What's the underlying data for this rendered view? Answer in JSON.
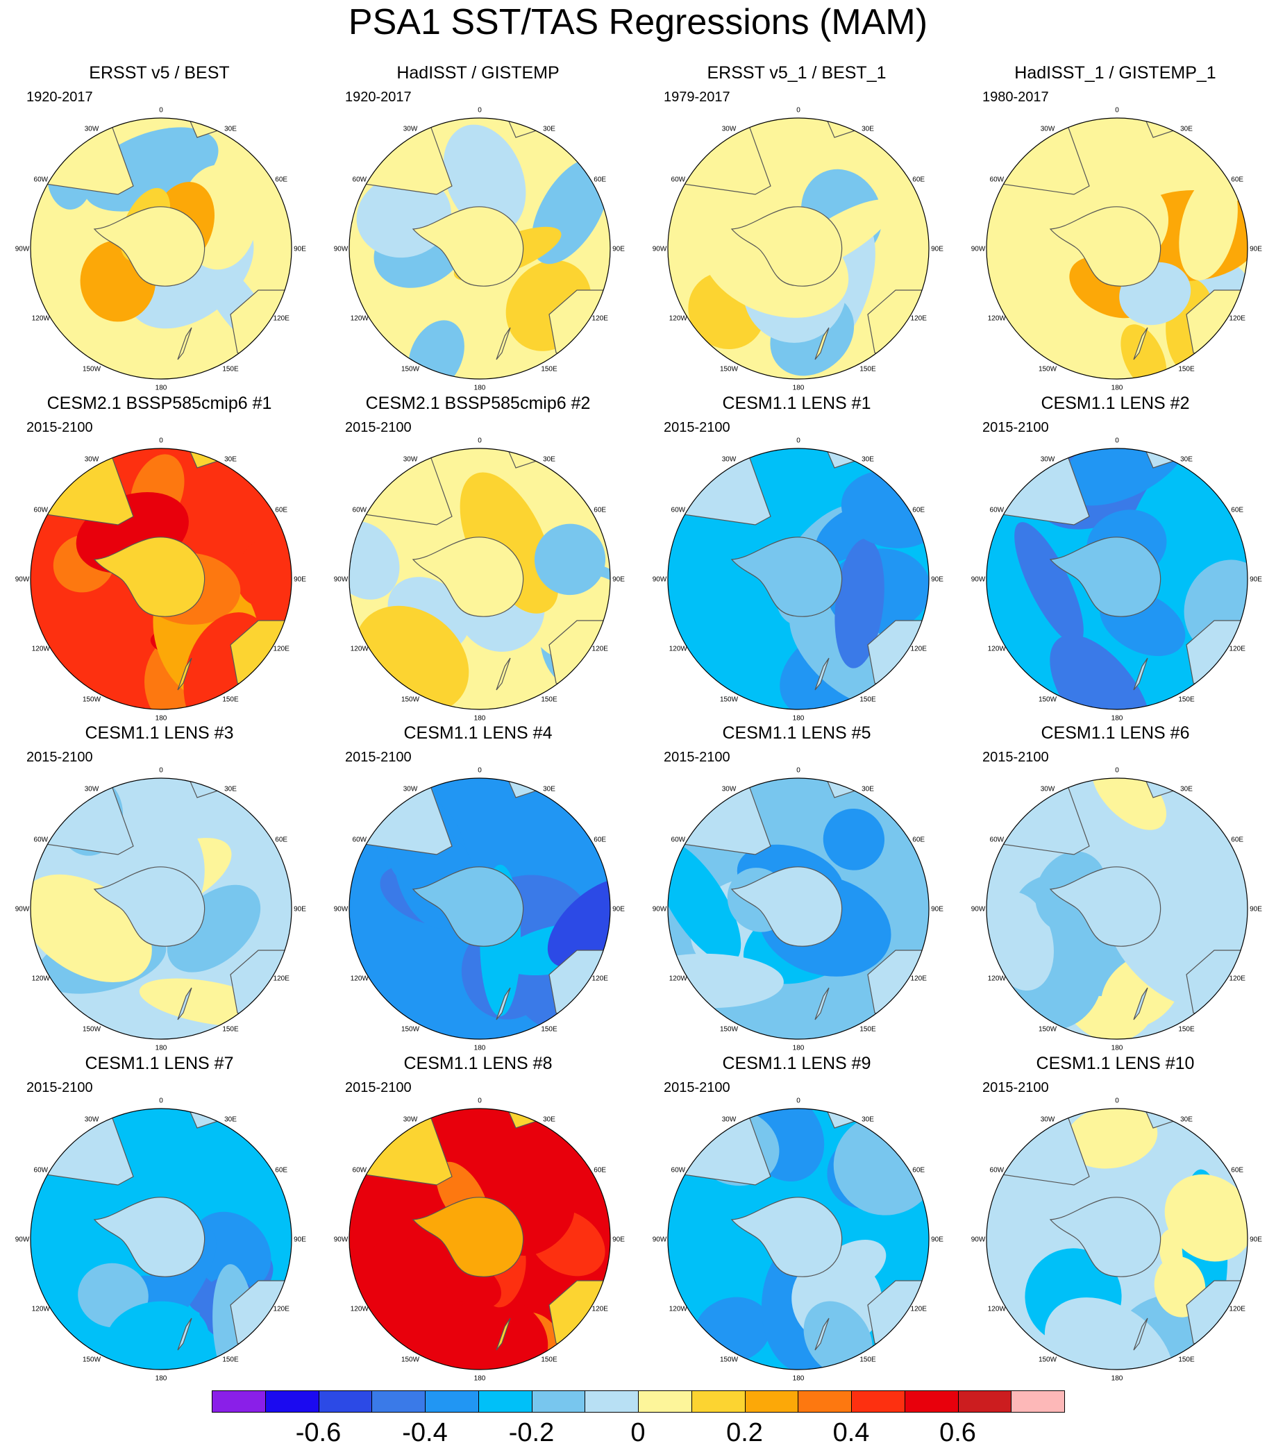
{
  "title": "PSA1 SST/TAS Regressions (MAM)",
  "chart_data": {
    "type": "polar-contour-map-grid",
    "projection": "South Polar Stereographic",
    "longitude_labels": [
      "0",
      "30E",
      "60E",
      "90E",
      "120E",
      "150E",
      "180",
      "150W",
      "120W",
      "90W",
      "60W",
      "30W"
    ],
    "colorbar": {
      "levels": [
        -0.7,
        -0.6,
        -0.5,
        -0.4,
        -0.3,
        -0.2,
        -0.1,
        0,
        0.1,
        0.2,
        0.3,
        0.4,
        0.5,
        0.6,
        0.7
      ],
      "tick_labels": [
        "-0.6",
        "-0.4",
        "-0.2",
        "0",
        "0.2",
        "0.4",
        "0.6"
      ],
      "colors": [
        "#8a1fe8",
        "#1b0af0",
        "#2c4ae6",
        "#3a7ae8",
        "#2196f3",
        "#00c0f8",
        "#78c6ee",
        "#b8e0f4",
        "#fdf59a",
        "#fcd431",
        "#fca808",
        "#fd7810",
        "#fd3010",
        "#e8000c",
        "#cc1d1f",
        "#fdb8b8"
      ]
    },
    "panels": [
      {
        "title": "ERSST v5 / BEST",
        "period": "1920-2017",
        "mean_level": 0.04
      },
      {
        "title": "HadISST / GISTEMP",
        "period": "1920-2017",
        "mean_level": 0.05
      },
      {
        "title": "ERSST v5_1 / BEST_1",
        "period": "1979-2017",
        "mean_level": 0.02
      },
      {
        "title": "HadISST_1 / GISTEMP_1",
        "period": "1980-2017",
        "mean_level": 0.06
      },
      {
        "title": "CESM2.1 BSSP585cmip6 #1",
        "period": "2015-2100",
        "mean_level": 0.48
      },
      {
        "title": "CESM2.1 BSSP585cmip6 #2",
        "period": "2015-2100",
        "mean_level": 0.0
      },
      {
        "title": "CESM1.1 LENS #1",
        "period": "2015-2100",
        "mean_level": -0.3
      },
      {
        "title": "CESM1.1 LENS #2",
        "period": "2015-2100",
        "mean_level": -0.3
      },
      {
        "title": "CESM1.1 LENS #3",
        "period": "2015-2100",
        "mean_level": -0.02
      },
      {
        "title": "CESM1.1 LENS #4",
        "period": "2015-2100",
        "mean_level": -0.33
      },
      {
        "title": "CESM1.1 LENS #5",
        "period": "2015-2100",
        "mean_level": -0.2
      },
      {
        "title": "CESM1.1 LENS #6",
        "period": "2015-2100",
        "mean_level": -0.06
      },
      {
        "title": "CESM1.1 LENS #7",
        "period": "2015-2100",
        "mean_level": -0.25
      },
      {
        "title": "CESM1.1 LENS #8",
        "period": "2015-2100",
        "mean_level": 0.5
      },
      {
        "title": "CESM1.1 LENS #9",
        "period": "2015-2100",
        "mean_level": -0.25
      },
      {
        "title": "CESM1.1 LENS #10",
        "period": "2015-2100",
        "mean_level": -0.1
      }
    ]
  }
}
